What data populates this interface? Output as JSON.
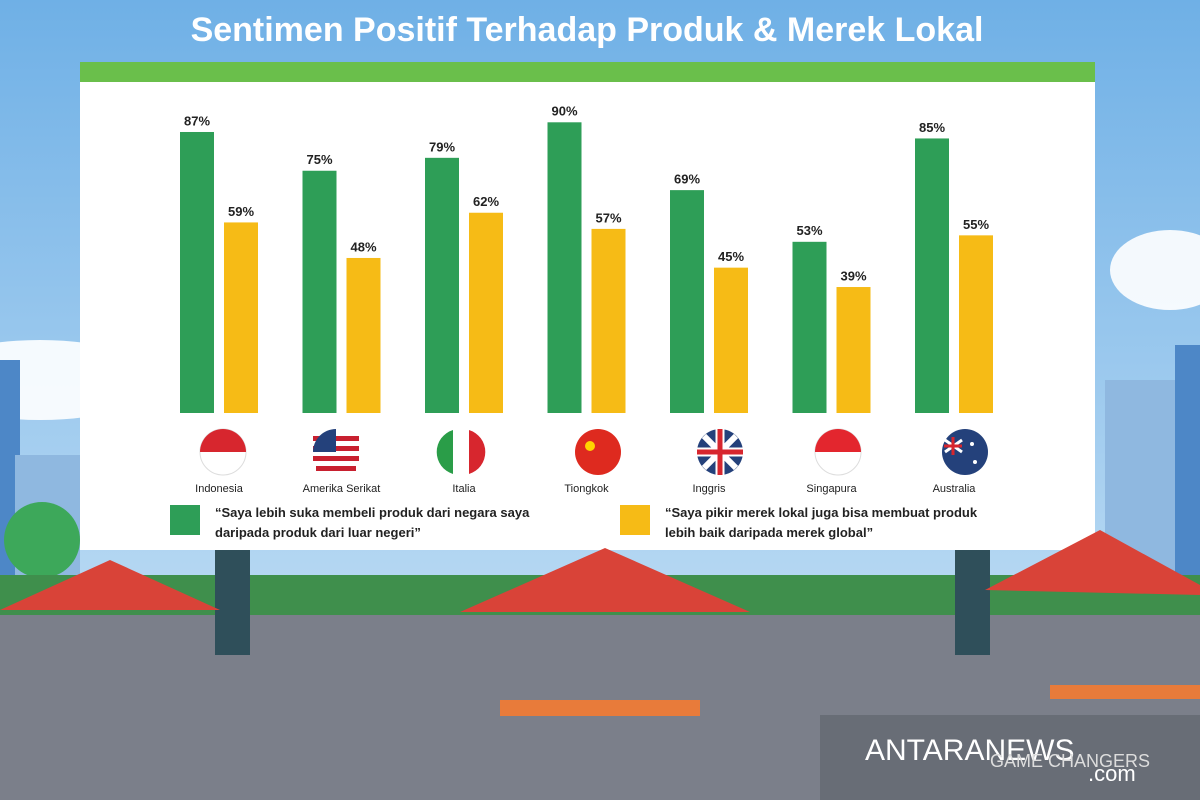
{
  "chart_data": {
    "type": "bar",
    "title": "Sentimen Positif Terhadap Produk & Merek Lokal",
    "categories": [
      "Indonesia",
      "Amerika Serikat",
      "Italia",
      "Tiongkok",
      "Inggris",
      "Singapura",
      "Australia"
    ],
    "series": [
      {
        "name": "“Saya lebih suka membeli produk dari negara saya daripada produk dari luar negeri”",
        "color": "#2e9e57",
        "values": [
          87,
          75,
          79,
          90,
          69,
          53,
          85
        ],
        "value_labels": [
          "87%",
          "75%",
          "79%",
          "90%",
          "69%",
          "53%",
          "85%"
        ]
      },
      {
        "name": "“Saya pikir merek lokal juga bisa membuat produk lebih baik daripada merek global”",
        "color": "#f6bb16",
        "values": [
          59,
          48,
          62,
          57,
          45,
          39,
          55
        ],
        "value_labels": [
          "59%",
          "48%",
          "62%",
          "57%",
          "45%",
          "39%",
          "55%"
        ]
      }
    ],
    "ylim": [
      0,
      100
    ],
    "watermark": [
      "ANTARANEWS",
      ".com",
      "GAME CHANGERS"
    ]
  }
}
